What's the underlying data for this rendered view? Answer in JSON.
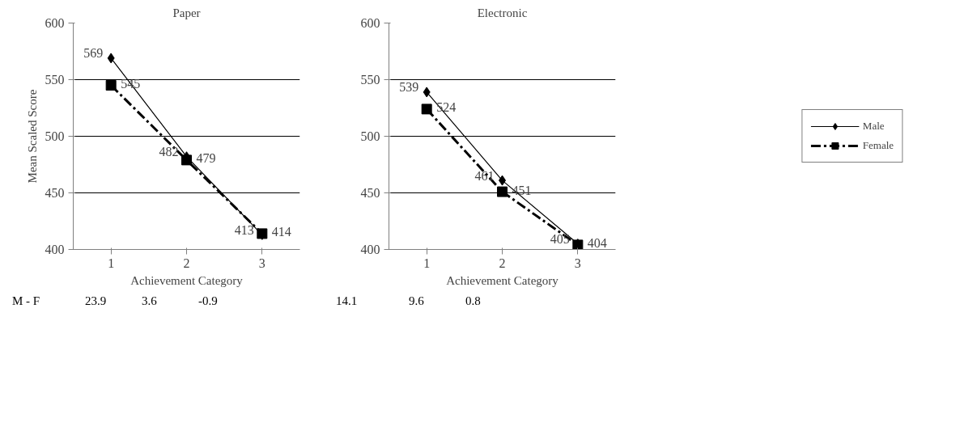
{
  "chart_data": [
    {
      "type": "line",
      "title": "Paper",
      "xlabel": "Achievement Category",
      "ylabel": "Mean Scaled Score",
      "categories": [
        "1",
        "2",
        "3"
      ],
      "series": [
        {
          "color": "#000000",
          "values": [
            569,
            482,
            413
          ],
          "marker": "diamond",
          "line_style": "solid"
        },
        {
          "color": "#000000",
          "values": [
            545,
            479,
            414
          ],
          "marker": "square",
          "line_style": "dashed"
        }
      ],
      "ylim": [
        400,
        600
      ],
      "yticks": [
        400,
        450,
        500,
        550,
        600
      ],
      "grid": "y",
      "data_labels": true,
      "annotations": [
        "M - F",
        "23.9",
        "3.6",
        "-0.9"
      ]
    },
    {
      "type": "line",
      "title": "Electronic",
      "xlabel": "Achievement Category",
      "categories": [
        "1",
        "2",
        "3"
      ],
      "series": [
        {
          "name": "Male",
          "color": "#000000",
          "values": [
            539,
            461,
            405
          ],
          "marker": "diamond",
          "line_style": "solid"
        },
        {
          "name": "Female",
          "color": "#000000",
          "values": [
            524,
            451,
            404
          ],
          "marker": "square",
          "line_style": "dashed"
        }
      ],
      "ylim": [
        400,
        600
      ],
      "yticks": [
        400,
        450,
        500,
        550,
        600
      ],
      "grid": "y",
      "data_labels": true,
      "legend": "right",
      "annotations": [
        "14.1",
        "9.6",
        "0.8"
      ]
    }
  ]
}
